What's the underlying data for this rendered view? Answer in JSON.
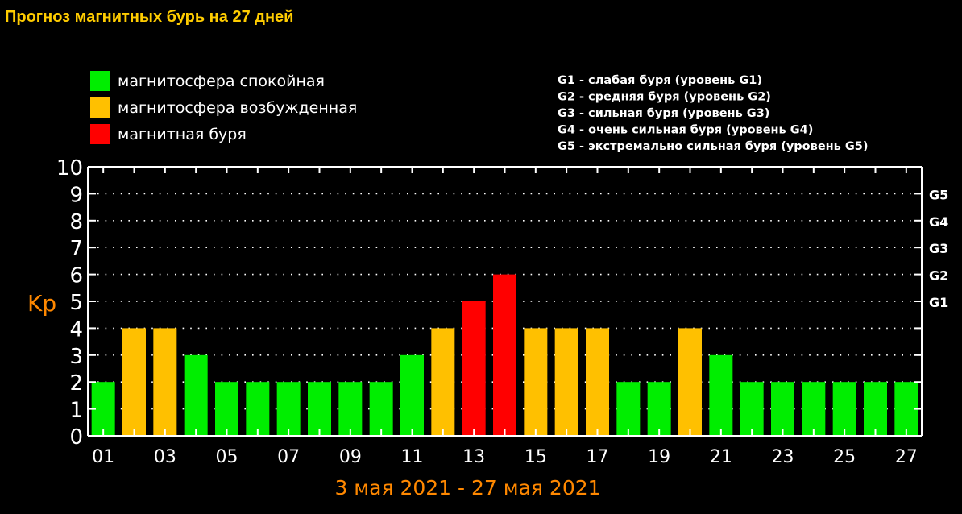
{
  "page_title": "Прогноз магнитных бурь на 27 дней",
  "chart_data": {
    "type": "bar",
    "title": "Прогноз магнитных бурь на 27 дней",
    "ylabel": "Kp",
    "xlabel": "3 мая 2021 - 27 мая 2021",
    "ylim": [
      0,
      10
    ],
    "yticks": [
      "0",
      "1",
      "2",
      "3",
      "4",
      "5",
      "6",
      "7",
      "8",
      "9",
      "10"
    ],
    "categories": [
      "01",
      "02",
      "03",
      "04",
      "05",
      "06",
      "07",
      "08",
      "09",
      "10",
      "11",
      "12",
      "13",
      "14",
      "15",
      "16",
      "17",
      "18",
      "19",
      "20",
      "21",
      "22",
      "23",
      "24",
      "25",
      "26",
      "27"
    ],
    "x_tick_labels": [
      "01",
      "03",
      "05",
      "07",
      "09",
      "11",
      "13",
      "15",
      "17",
      "19",
      "21",
      "23",
      "25",
      "27"
    ],
    "values": [
      2,
      4,
      4,
      3,
      2,
      2,
      2,
      2,
      2,
      2,
      3,
      4,
      5,
      6,
      4,
      4,
      4,
      2,
      2,
      4,
      3,
      2,
      2,
      2,
      2,
      2,
      2
    ],
    "colors": {
      "quiet": "#00ee00",
      "active": "#ffc000",
      "storm": "#ff0000",
      "axis": "#ffffff",
      "ylabel": "#ff8800",
      "xlabel": "#ff8800"
    },
    "legend_left": [
      {
        "label": "магнитосфера спокойная",
        "color": "#00ee00"
      },
      {
        "label": "магнитосфера возбужденная",
        "color": "#ffc000"
      },
      {
        "label": "магнитная буря",
        "color": "#ff0000"
      }
    ],
    "legend_right": [
      "G1 - слабая буря (уровень G1)",
      "G2 - средняя буря (уровень G2)",
      "G3 - сильная буря (уровень G3)",
      "G4 - очень сильная буря (уровень G4)",
      "G5 - экстремально сильная буря (уровень G5)"
    ],
    "g_levels": [
      {
        "label": "G1",
        "kp": 5
      },
      {
        "label": "G2",
        "kp": 6
      },
      {
        "label": "G3",
        "kp": 7
      },
      {
        "label": "G4",
        "kp": 8
      },
      {
        "label": "G5",
        "kp": 9
      }
    ],
    "grid": "dotted horizontal"
  }
}
